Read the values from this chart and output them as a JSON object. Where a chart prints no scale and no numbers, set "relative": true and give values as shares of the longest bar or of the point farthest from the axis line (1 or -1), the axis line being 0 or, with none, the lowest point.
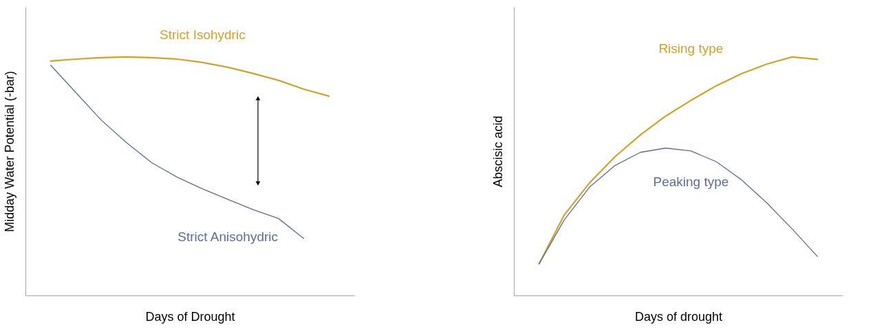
{
  "chart_data": [
    {
      "type": "line",
      "relative": true,
      "xlabel": "Days of Drought",
      "ylabel": "Midday Water Potential (-bar)",
      "categories": [
        null,
        null,
        null,
        null,
        null,
        null,
        null,
        null,
        null,
        null,
        null,
        null
      ],
      "legend": false,
      "grid": false,
      "marker": "none",
      "line_style": "solid",
      "tick_labels": false,
      "series": [
        {
          "name": "Strict Isohydric",
          "color": "#cfa32a",
          "values": [
            0.983,
            0.991,
            0.997,
            1,
            0.997,
            0.991,
            0.977,
            0.957,
            0.931,
            0.902,
            0.865,
            0.836
          ]
        },
        {
          "name": "Strict Anisohydric",
          "color": "#5b6d98",
          "values": [
            0.965,
            0.85,
            0.735,
            0.64,
            0.556,
            0.496,
            0.447,
            0.403,
            0.36,
            0.323,
            0.239,
            null
          ]
        }
      ]
    },
    {
      "type": "line",
      "relative": true,
      "xlabel": "Days of drought",
      "ylabel": "Abscisic acid",
      "categories": [
        null,
        null,
        null,
        null,
        null,
        null,
        null,
        null,
        null,
        null,
        null,
        null
      ],
      "legend": false,
      "grid": false,
      "marker": "none",
      "line_style": "solid",
      "tick_labels": false,
      "series": [
        {
          "name": "Rising type",
          "color": "#cfa32a",
          "values": [
            0.133,
            0.339,
            0.473,
            0.582,
            0.673,
            0.752,
            0.818,
            0.879,
            0.93,
            0.97,
            1,
            0.99
          ]
        },
        {
          "name": "Peaking type",
          "color": "#5b6d98",
          "values": [
            0.133,
            0.318,
            0.455,
            0.545,
            0.6,
            0.618,
            0.606,
            0.561,
            0.485,
            0.388,
            0.279,
            0.164
          ]
        }
      ]
    }
  ]
}
